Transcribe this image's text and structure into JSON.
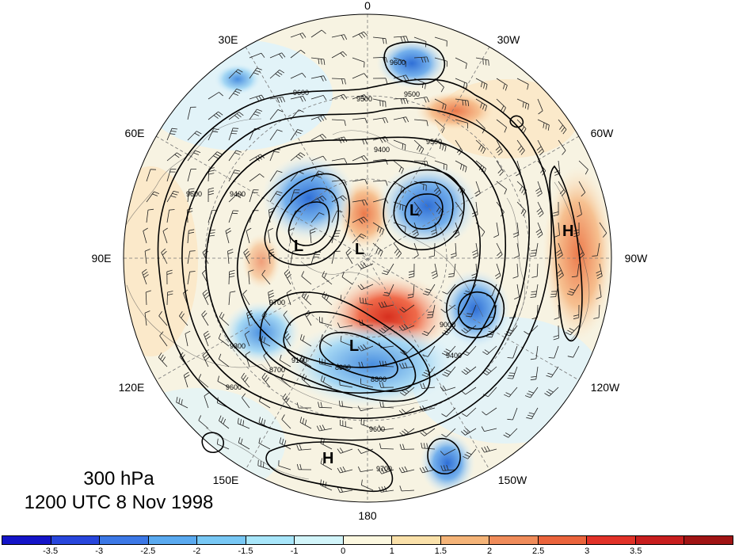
{
  "map": {
    "projection": "north-polar-stereographic",
    "longitude_labels": [
      "0",
      "30W",
      "60W",
      "90W",
      "120W",
      "150W",
      "180",
      "150E",
      "120E",
      "90E",
      "60E",
      "30E"
    ],
    "pressure_centers": [
      {
        "label": "L"
      },
      {
        "label": "L"
      },
      {
        "label": "L"
      },
      {
        "label": "L"
      },
      {
        "label": "H"
      },
      {
        "label": "H"
      }
    ],
    "contour_labels": [
      "9600",
      "9500",
      "9600",
      "9500",
      "9400",
      "9600",
      "9700",
      "9400",
      "9000",
      "9300",
      "8700",
      "8900",
      "8800",
      "9100",
      "9600",
      "9500",
      "9600",
      "9400",
      "9700"
    ]
  },
  "title": {
    "level": "300 hPa",
    "time": "1200 UTC 8 Nov 1998"
  },
  "colorbar": {
    "colors": [
      "#1414c8",
      "#2846dc",
      "#3c78e6",
      "#5aaaf0",
      "#78c8f5",
      "#a8e6fa",
      "#d2f5fa",
      "#fcf8e0",
      "#fae1aa",
      "#f5b478",
      "#f08c5a",
      "#eb643c",
      "#e13228",
      "#c81e1e",
      "#a01414"
    ],
    "tick_labels": [
      "-3.5",
      "-3",
      "-2.5",
      "-2",
      "-1.5",
      "-1",
      "0",
      "1",
      "1.5",
      "2",
      "2.5",
      "3",
      "3.5"
    ]
  }
}
